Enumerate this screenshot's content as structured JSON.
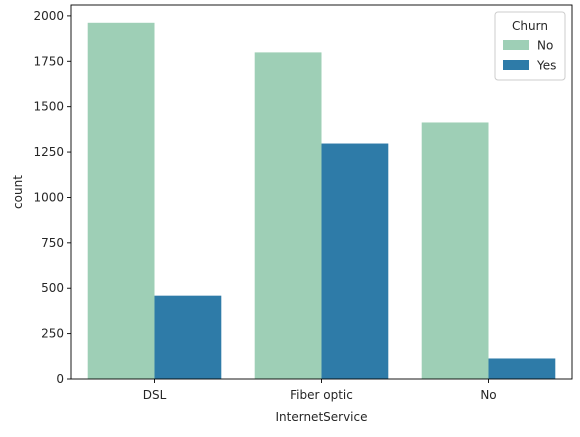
{
  "chart_data": {
    "type": "bar",
    "title": "",
    "xlabel": "InternetService",
    "ylabel": "count",
    "categories": [
      "DSL",
      "Fiber optic",
      "No"
    ],
    "series": [
      {
        "name": "No",
        "values": [
          1962,
          1799,
          1413
        ],
        "color": "#9ecfb6"
      },
      {
        "name": "Yes",
        "values": [
          459,
          1297,
          113
        ],
        "color": "#2e7ba8"
      }
    ],
    "ylim": [
      0,
      2060
    ],
    "yticks": [
      0,
      250,
      500,
      750,
      1000,
      1250,
      1500,
      1750,
      2000
    ],
    "grid": false,
    "legend": {
      "title": "Churn",
      "placement": "top-right"
    }
  }
}
